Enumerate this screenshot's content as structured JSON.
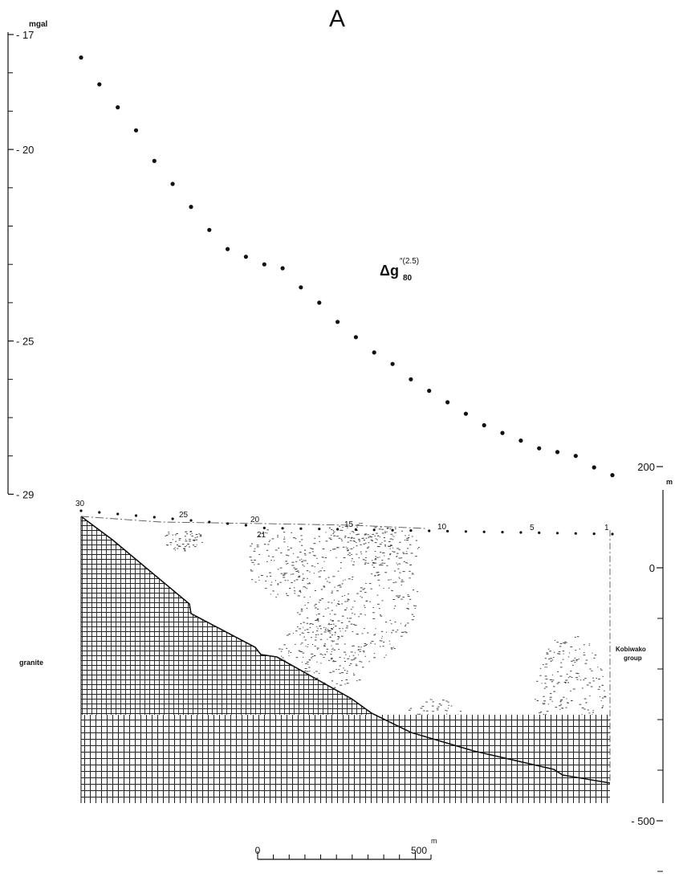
{
  "chart_data": [
    {
      "type": "scatter",
      "title": "A",
      "series_label_main": "Δg",
      "series_label_sup": "″(2.5)",
      "series_label_sub": "80",
      "yunit": "mgal",
      "ylim": [
        -29,
        -17
      ],
      "yticks": [
        -17,
        -20,
        -25,
        -29
      ],
      "y_minor_ticks": [
        -18,
        -19,
        -21,
        -22,
        -23,
        -24,
        -26,
        -27,
        -28
      ],
      "station_x_order": "station 30 at left, station 1 at right",
      "points": [
        {
          "station": 30,
          "value": -17.6
        },
        {
          "station": 29,
          "value": -18.3
        },
        {
          "station": 28,
          "value": -18.9
        },
        {
          "station": 27,
          "value": -19.5
        },
        {
          "station": 26,
          "value": -20.3
        },
        {
          "station": 25,
          "value": -20.9
        },
        {
          "station": 24,
          "value": -21.5
        },
        {
          "station": 23,
          "value": -22.1
        },
        {
          "station": 22,
          "value": -22.6
        },
        {
          "station": 21,
          "value": -22.8
        },
        {
          "station": 20,
          "value": -23.0
        },
        {
          "station": 19,
          "value": -23.1
        },
        {
          "station": 18,
          "value": -23.6
        },
        {
          "station": 17,
          "value": -24.0
        },
        {
          "station": 16,
          "value": -24.5
        },
        {
          "station": 15,
          "value": -24.9
        },
        {
          "station": 14,
          "value": -25.3
        },
        {
          "station": 13,
          "value": -25.6
        },
        {
          "station": 12,
          "value": -26.0
        },
        {
          "station": 11,
          "value": -26.3
        },
        {
          "station": 10,
          "value": -26.6
        },
        {
          "station": 9,
          "value": -26.9
        },
        {
          "station": 8,
          "value": -27.2
        },
        {
          "station": 7,
          "value": -27.4
        },
        {
          "station": 6,
          "value": -27.6
        },
        {
          "station": 5,
          "value": -27.8
        },
        {
          "station": 4,
          "value": -27.9
        },
        {
          "station": 3,
          "value": -28.0
        },
        {
          "station": 2,
          "value": -28.3
        },
        {
          "station": 1,
          "value": -28.5
        }
      ]
    },
    {
      "type": "cross_section",
      "yunit": "m",
      "ylim": [
        -600,
        200
      ],
      "ytick_labels": [
        200,
        0,
        -500
      ],
      "y_minor_ticks": [
        -100,
        -200,
        -300,
        -400,
        -600
      ],
      "station_labels": [
        "30",
        "25",
        "20",
        "21",
        "15",
        "10",
        "5",
        "1"
      ],
      "layer_left": "granite",
      "layer_right_line1": "Kobiwako",
      "layer_right_line2": "group",
      "scale_bar": {
        "start_label": "0",
        "end_label": "500",
        "unit": "m",
        "length_m": 500
      }
    }
  ]
}
